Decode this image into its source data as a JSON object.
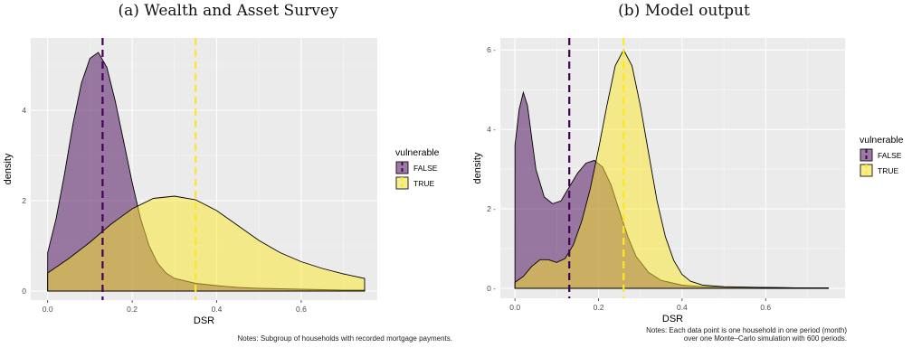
{
  "chart_data": [
    {
      "type": "area",
      "title": "(a) Wealth and Asset Survey",
      "xlabel": "DSR",
      "ylabel": "density",
      "xlim": [
        -0.04,
        0.78
      ],
      "ylim": [
        -0.2,
        5.6
      ],
      "xticks": [
        0.0,
        0.2,
        0.4,
        0.6
      ],
      "xtick_labels": [
        "0.0",
        "0.2",
        "0.4",
        "0.6"
      ],
      "yticks": [
        0,
        2,
        4
      ],
      "ytick_labels": [
        "0",
        "2",
        "4"
      ],
      "grid": true,
      "legend": {
        "title": "vulnerable",
        "position": "right",
        "entries": [
          "FALSE",
          "TRUE"
        ]
      },
      "series": [
        {
          "name": "FALSE",
          "color": "#440154",
          "mean_line": 0.13,
          "x": [
            0.0,
            0.02,
            0.04,
            0.06,
            0.08,
            0.1,
            0.12,
            0.14,
            0.16,
            0.18,
            0.2,
            0.22,
            0.24,
            0.26,
            0.28,
            0.3,
            0.35,
            0.4,
            0.45,
            0.5,
            0.55,
            0.6,
            0.65,
            0.7,
            0.75
          ],
          "y": [
            0.85,
            1.6,
            2.6,
            3.7,
            4.6,
            5.15,
            5.28,
            4.95,
            4.2,
            3.3,
            2.4,
            1.6,
            1.0,
            0.62,
            0.4,
            0.28,
            0.17,
            0.12,
            0.08,
            0.06,
            0.05,
            0.04,
            0.03,
            0.02,
            0.02
          ]
        },
        {
          "name": "TRUE",
          "color": "#FDE725",
          "mean_line": 0.35,
          "x": [
            0.0,
            0.05,
            0.1,
            0.15,
            0.2,
            0.25,
            0.3,
            0.35,
            0.4,
            0.45,
            0.5,
            0.55,
            0.6,
            0.65,
            0.7,
            0.75
          ],
          "y": [
            0.4,
            0.72,
            1.08,
            1.48,
            1.82,
            2.05,
            2.1,
            2.02,
            1.78,
            1.45,
            1.12,
            0.85,
            0.65,
            0.5,
            0.38,
            0.28
          ]
        }
      ]
    },
    {
      "type": "area",
      "title": "(b) Model output",
      "xlabel": "DSR",
      "ylabel": "density",
      "xlim": [
        -0.035,
        0.79
      ],
      "ylim": [
        -0.25,
        6.3
      ],
      "xticks": [
        0.0,
        0.2,
        0.4,
        0.6
      ],
      "xtick_labels": [
        "0.0",
        "0.2",
        "0.4",
        "0.6"
      ],
      "yticks": [
        0,
        2,
        4,
        6
      ],
      "ytick_labels": [
        "0 -",
        "2 -",
        "4 -",
        "6 -"
      ],
      "grid": true,
      "legend": {
        "title": "vulnerable",
        "position": "right",
        "entries": [
          "FALSE",
          "TRUE"
        ]
      },
      "series": [
        {
          "name": "FALSE",
          "color": "#440154",
          "mean_line": 0.13,
          "x": [
            0.0,
            0.01,
            0.02,
            0.03,
            0.04,
            0.05,
            0.07,
            0.09,
            0.11,
            0.13,
            0.15,
            0.17,
            0.19,
            0.21,
            0.23,
            0.25,
            0.27,
            0.29,
            0.32,
            0.35,
            0.4,
            0.45,
            0.5,
            0.6,
            0.7,
            0.75
          ],
          "y": [
            3.6,
            4.5,
            4.93,
            4.6,
            3.8,
            3.0,
            2.3,
            2.13,
            2.2,
            2.55,
            2.9,
            3.15,
            3.22,
            3.05,
            2.6,
            1.95,
            1.3,
            0.8,
            0.4,
            0.2,
            0.08,
            0.04,
            0.03,
            0.02,
            0.01,
            0.01
          ]
        },
        {
          "name": "TRUE",
          "color": "#FDE725",
          "mean_line": 0.26,
          "x": [
            0.0,
            0.02,
            0.04,
            0.06,
            0.08,
            0.1,
            0.12,
            0.14,
            0.16,
            0.18,
            0.2,
            0.22,
            0.24,
            0.26,
            0.28,
            0.3,
            0.32,
            0.34,
            0.36,
            0.38,
            0.4,
            0.42,
            0.45,
            0.5,
            0.6,
            0.7,
            0.75
          ],
          "y": [
            0.15,
            0.3,
            0.55,
            0.72,
            0.72,
            0.65,
            0.75,
            1.1,
            1.7,
            2.5,
            3.5,
            4.6,
            5.6,
            6.0,
            5.6,
            4.6,
            3.4,
            2.2,
            1.3,
            0.7,
            0.35,
            0.18,
            0.08,
            0.04,
            0.02,
            0.01,
            0.01
          ]
        }
      ]
    }
  ],
  "notes": {
    "a": "Notes: Subgroup of households with recorded mortgage payments.",
    "b_line1": "Notes: Each data point is one household in one period (month)",
    "b_line2": "over one Monte–Carlo simulation with 600 periods."
  }
}
